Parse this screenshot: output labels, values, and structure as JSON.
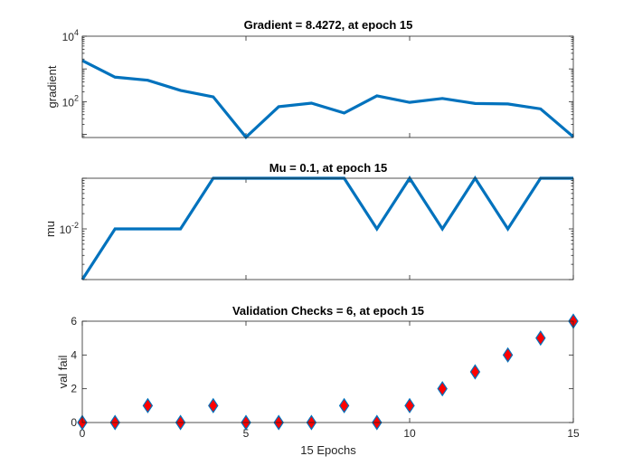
{
  "chart_data": [
    {
      "type": "line",
      "title": "Gradient = 8.4272, at epoch 15",
      "ylabel": "gradient",
      "xlabel": "",
      "yscale": "log",
      "xlim": [
        0,
        15
      ],
      "ylim": [
        8,
        10000
      ],
      "yticks": [
        {
          "value": 100,
          "base": "10",
          "exp": "2"
        },
        {
          "value": 10000,
          "base": "10",
          "exp": "4"
        }
      ],
      "x": [
        0,
        1,
        2,
        3,
        4,
        5,
        6,
        7,
        8,
        9,
        10,
        11,
        12,
        13,
        14,
        15
      ],
      "series": [
        {
          "name": "gradient",
          "color": "#0072BD",
          "values": [
            1800,
            560,
            450,
            220,
            140,
            8.2,
            70,
            90,
            45,
            150,
            95,
            125,
            88,
            85,
            60,
            8.4272
          ]
        }
      ]
    },
    {
      "type": "line",
      "title": "Mu = 0.1, at epoch 15",
      "ylabel": "mu",
      "xlabel": "",
      "yscale": "log",
      "xlim": [
        0,
        15
      ],
      "ylim": [
        0.001,
        0.1
      ],
      "yticks": [
        {
          "value": 0.01,
          "base": "10",
          "exp": "-2"
        }
      ],
      "x": [
        0,
        1,
        2,
        3,
        4,
        5,
        6,
        7,
        8,
        9,
        10,
        11,
        12,
        13,
        14,
        15
      ],
      "series": [
        {
          "name": "mu",
          "color": "#0072BD",
          "values": [
            0.001,
            0.01,
            0.01,
            0.01,
            0.1,
            0.1,
            0.1,
            0.1,
            0.1,
            0.01,
            0.1,
            0.01,
            0.1,
            0.01,
            0.1,
            0.1
          ]
        }
      ]
    },
    {
      "type": "scatter",
      "title": "Validation Checks = 6, at epoch 15",
      "ylabel": "val fail",
      "xlabel": "15 Epochs",
      "xlim": [
        0,
        15
      ],
      "ylim": [
        0,
        6
      ],
      "xticks": [
        "0",
        "5",
        "10",
        "15"
      ],
      "yticks": [
        "0",
        "2",
        "4",
        "6"
      ],
      "marker": "diamond",
      "marker_fill": "#FF0000",
      "marker_edge": "#0072BD",
      "x": [
        0,
        1,
        2,
        3,
        4,
        5,
        6,
        7,
        8,
        9,
        10,
        11,
        12,
        13,
        14,
        15
      ],
      "series": [
        {
          "name": "val fail",
          "values": [
            0,
            0,
            1,
            0,
            1,
            0,
            0,
            0,
            1,
            0,
            1,
            2,
            3,
            4,
            5,
            6
          ]
        }
      ]
    }
  ]
}
